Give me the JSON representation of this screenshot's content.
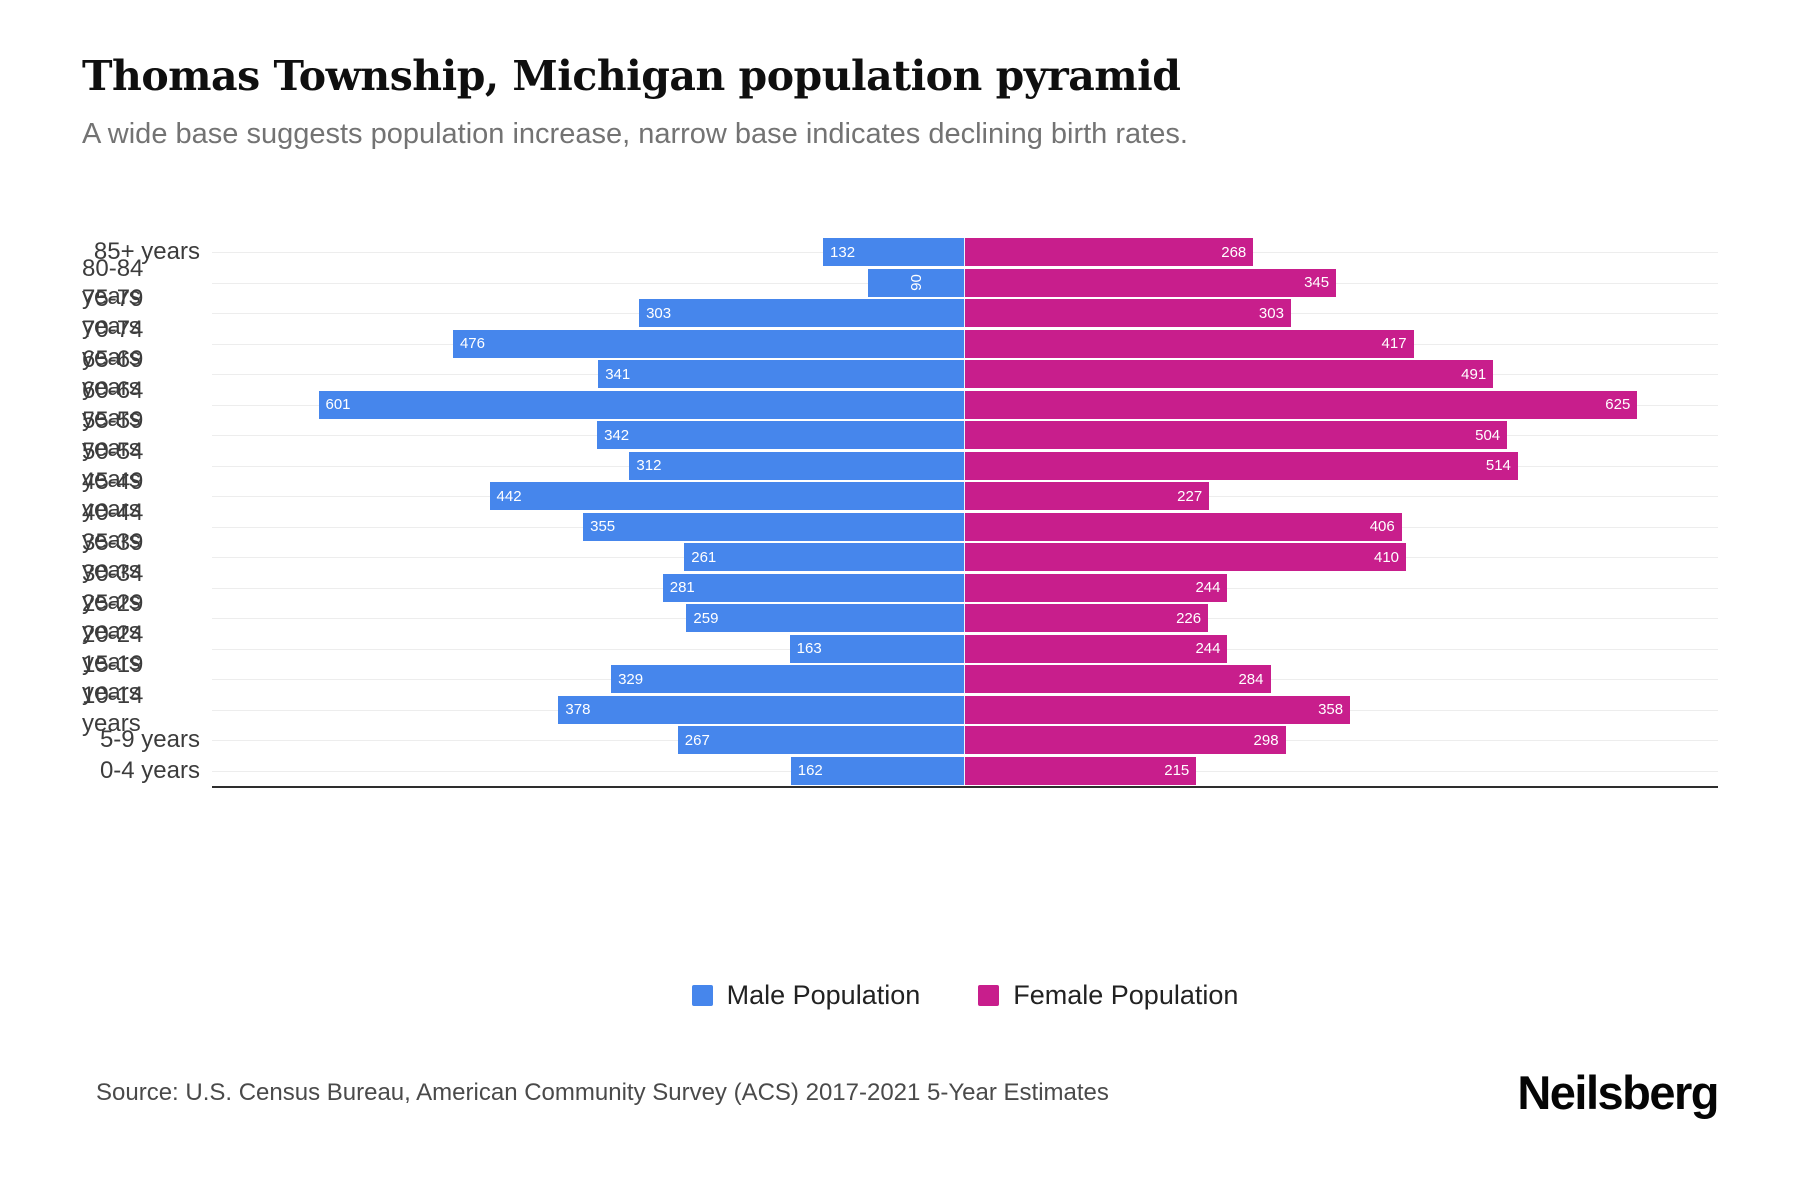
{
  "header": {
    "title": "Thomas Township, Michigan population pyramid",
    "subtitle": "A wide base suggests population increase, narrow base indicates declining birth rates."
  },
  "chart_data": {
    "type": "bar",
    "variant": "population_pyramid",
    "orientation": "horizontal",
    "title": "Thomas Township, Michigan population pyramid",
    "categories": [
      "85+ years",
      "80-84 years",
      "75-79 years",
      "70-74 years",
      "65-69 years",
      "60-64 years",
      "55-59 years",
      "50-54 years",
      "45-49 years",
      "40-44 years",
      "35-39 years",
      "30-34 years",
      "25-29 years",
      "20-24 years",
      "15-19 years",
      "10-14 years",
      "5-9 years",
      "0-4 years"
    ],
    "series": [
      {
        "name": "Male Population",
        "color": "#4686EC",
        "values": [
          132,
          90,
          303,
          476,
          341,
          601,
          342,
          312,
          442,
          355,
          261,
          281,
          259,
          163,
          329,
          378,
          267,
          162
        ]
      },
      {
        "name": "Female Population",
        "color": "#C81E8C",
        "values": [
          268,
          345,
          303,
          417,
          491,
          625,
          504,
          514,
          227,
          406,
          410,
          244,
          226,
          244,
          284,
          358,
          298,
          215
        ]
      }
    ],
    "x_max_per_side": 700,
    "grid": "horizontal category gridlines",
    "legend_position": "bottom-center",
    "value_labels": "white, inside outer end of each bar; rotated vertically when bar is very short"
  },
  "legend": {
    "items": [
      {
        "label": "Male Population",
        "color": "#4686EC"
      },
      {
        "label": "Female Population",
        "color": "#C81E8C"
      }
    ]
  },
  "footer": {
    "source": "Source: U.S. Census Bureau, American Community Survey (ACS) 2017-2021 5-Year Estimates",
    "brand": "Neilsberg"
  }
}
